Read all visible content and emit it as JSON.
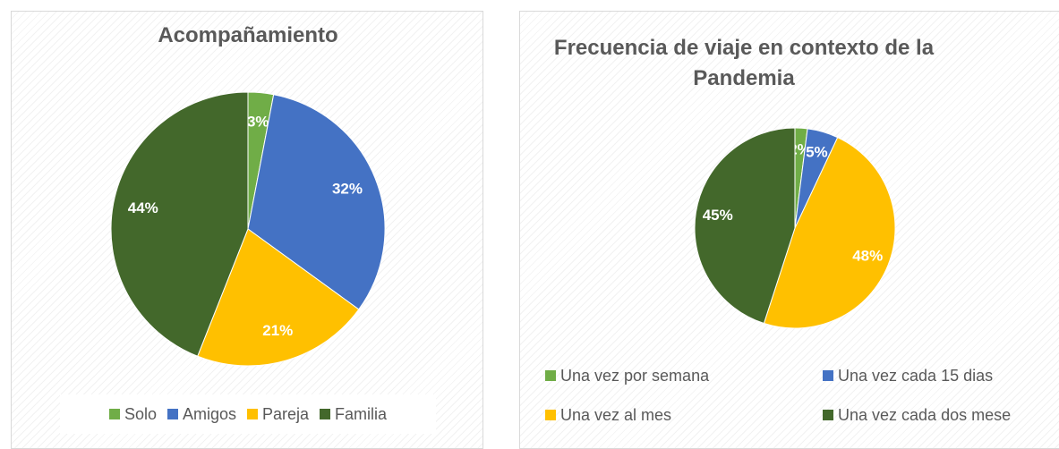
{
  "chart_data": [
    {
      "type": "pie",
      "title": "Acompañamiento",
      "categories": [
        "Solo",
        "Amigos",
        "Pareja",
        "Familia"
      ],
      "values": [
        3,
        32,
        21,
        44
      ],
      "value_labels": [
        "3%",
        "32%",
        "21%",
        "44%"
      ],
      "colors": [
        "#70ad47",
        "#4472c4",
        "#ffc000",
        "#43682b"
      ],
      "legend": "bottom"
    },
    {
      "type": "pie",
      "title": "Frecuencia de viaje en contexto de la Pandemia",
      "categories": [
        "Una vez por semana",
        "Una vez cada 15 dias",
        "Una vez al mes",
        "Una vez cada dos mese"
      ],
      "values": [
        2,
        5,
        48,
        45
      ],
      "value_labels": [
        "2%",
        "5%",
        "48%",
        "45%"
      ],
      "colors": [
        "#70ad47",
        "#4472c4",
        "#ffc000",
        "#43682b"
      ],
      "legend": "bottom"
    }
  ]
}
